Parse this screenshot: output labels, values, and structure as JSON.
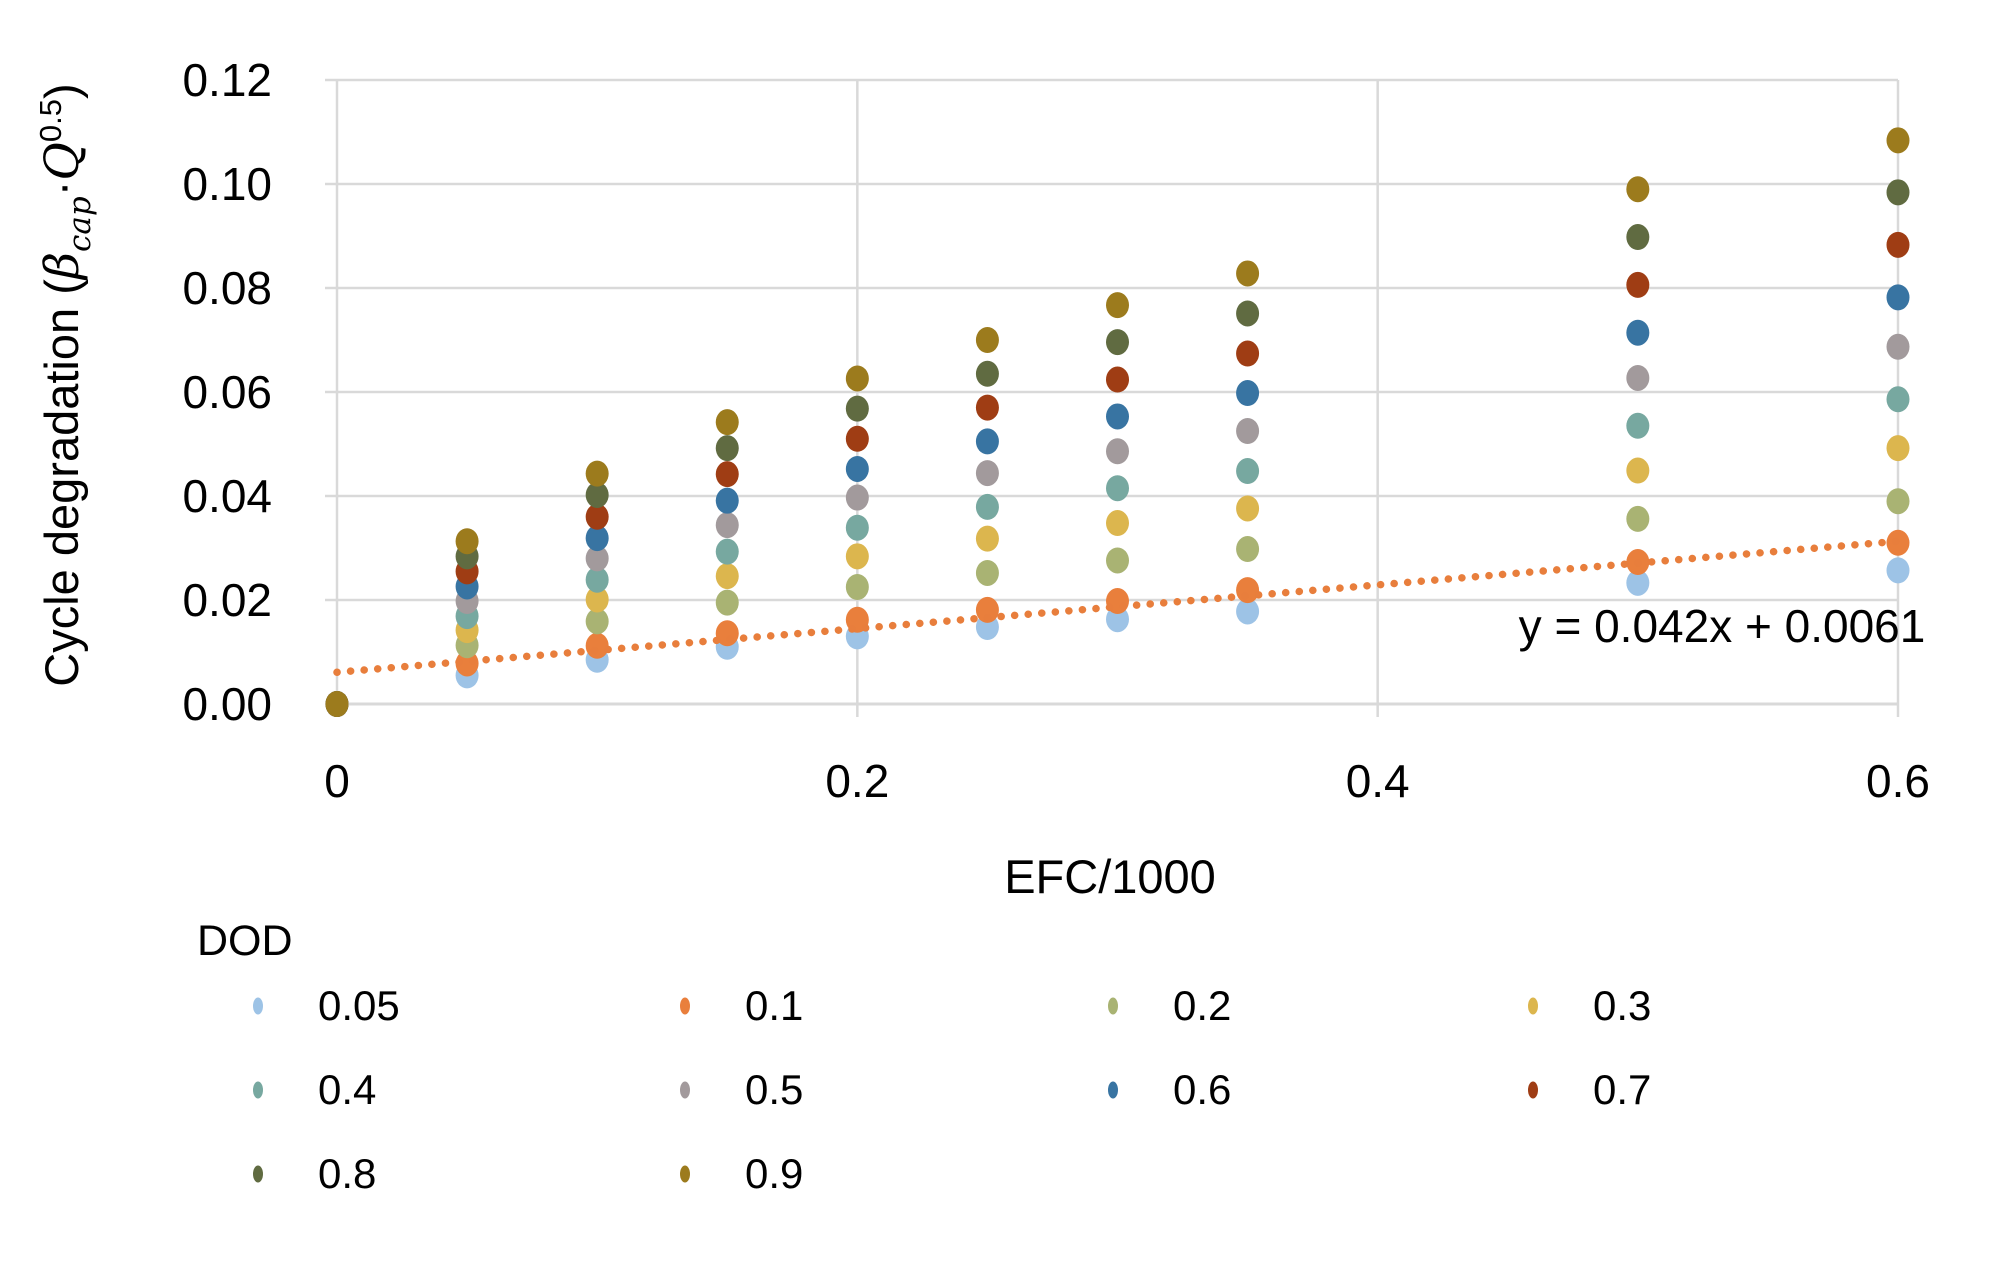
{
  "chart_data": {
    "type": "scatter",
    "title": "",
    "xlabel": "EFC/1000",
    "ylabel_plain": "Cycle degradation (β_cap·Q^0.5)",
    "ylabel_parts": {
      "prefix": "Cycle degradation (",
      "beta": "β",
      "beta_sub": "cap",
      "dot": "·",
      "q": "Q",
      "q_sup": "0.5",
      "suffix": ")"
    },
    "axes": {
      "xlim": [
        0,
        0.6
      ],
      "ylim": [
        0,
        0.12
      ],
      "grid": true,
      "xticks": [
        {
          "value": 0,
          "label": "0"
        },
        {
          "value": 0.2,
          "label": "0.2"
        },
        {
          "value": 0.4,
          "label": "0.4"
        },
        {
          "value": 0.6,
          "label": "0.6"
        }
      ],
      "yticks": [
        {
          "value": 0.0,
          "label": "0.00"
        },
        {
          "value": 0.02,
          "label": "0.02"
        },
        {
          "value": 0.04,
          "label": "0.04"
        },
        {
          "value": 0.06,
          "label": "0.06"
        },
        {
          "value": 0.08,
          "label": "0.08"
        },
        {
          "value": 0.1,
          "label": "0.10"
        },
        {
          "value": 0.12,
          "label": "0.12"
        }
      ]
    },
    "x": [
      0,
      0.05,
      0.1,
      0.15,
      0.2,
      0.25,
      0.3,
      0.35,
      0.5,
      0.6
    ],
    "series": [
      {
        "name": "0.05",
        "color": "#9DC3E6",
        "values": [
          0,
          0.0055,
          0.0085,
          0.011,
          0.013,
          0.0148,
          0.0163,
          0.0178,
          0.0233,
          0.0257
        ]
      },
      {
        "name": "0.1",
        "color": "#E97F3C",
        "values": [
          0,
          0.0078,
          0.0112,
          0.0136,
          0.0162,
          0.0181,
          0.0198,
          0.0219,
          0.0273,
          0.031
        ]
      },
      {
        "name": "0.2",
        "color": "#A9B373",
        "values": [
          0,
          0.0113,
          0.0159,
          0.0195,
          0.0225,
          0.0252,
          0.0276,
          0.0298,
          0.0356,
          0.039
        ]
      },
      {
        "name": "0.3",
        "color": "#DCB64E",
        "values": [
          0,
          0.0142,
          0.0201,
          0.0246,
          0.0284,
          0.0318,
          0.0348,
          0.0376,
          0.0449,
          0.0492
        ]
      },
      {
        "name": "0.4",
        "color": "#77A8A0",
        "values": [
          0,
          0.0169,
          0.0239,
          0.0293,
          0.0339,
          0.0379,
          0.0415,
          0.0448,
          0.0535,
          0.0586
        ]
      },
      {
        "name": "0.5",
        "color": "#A29A9C",
        "values": [
          0,
          0.0198,
          0.028,
          0.0344,
          0.0397,
          0.0444,
          0.0486,
          0.0525,
          0.0627,
          0.0687
        ]
      },
      {
        "name": "0.6",
        "color": "#3874A2",
        "values": [
          0,
          0.0226,
          0.0319,
          0.0391,
          0.0452,
          0.0505,
          0.0553,
          0.0598,
          0.0714,
          0.0782
        ]
      },
      {
        "name": "0.7",
        "color": "#9F3D14",
        "values": [
          0,
          0.0255,
          0.036,
          0.0442,
          0.051,
          0.057,
          0.0624,
          0.0674,
          0.0806,
          0.0883
        ]
      },
      {
        "name": "0.8",
        "color": "#606B41",
        "values": [
          0,
          0.0284,
          0.0402,
          0.0492,
          0.0568,
          0.0635,
          0.0696,
          0.0751,
          0.0898,
          0.0984
        ]
      },
      {
        "name": "0.9",
        "color": "#9C7B1D",
        "values": [
          0,
          0.0313,
          0.0443,
          0.0542,
          0.0626,
          0.07,
          0.0767,
          0.0828,
          0.099,
          0.1084
        ]
      }
    ],
    "trendline": {
      "equation": "y = 0.042x + 0.0061",
      "slope": 0.042,
      "intercept": 0.0061,
      "color": "#E87E3C",
      "style": "dotted"
    },
    "legend": {
      "title": "DOD",
      "position": "bottom-left",
      "rows": [
        [
          "0.05",
          "0.1",
          "0.2",
          "0.3"
        ],
        [
          "0.4",
          "0.5",
          "0.6",
          "0.7"
        ],
        [
          "0.8",
          "0.9"
        ]
      ]
    }
  },
  "colors": {
    "grid": "#D9D9D9",
    "axis_line": "#CFCFCF",
    "text": "#000000",
    "background": "#FFFFFF"
  }
}
